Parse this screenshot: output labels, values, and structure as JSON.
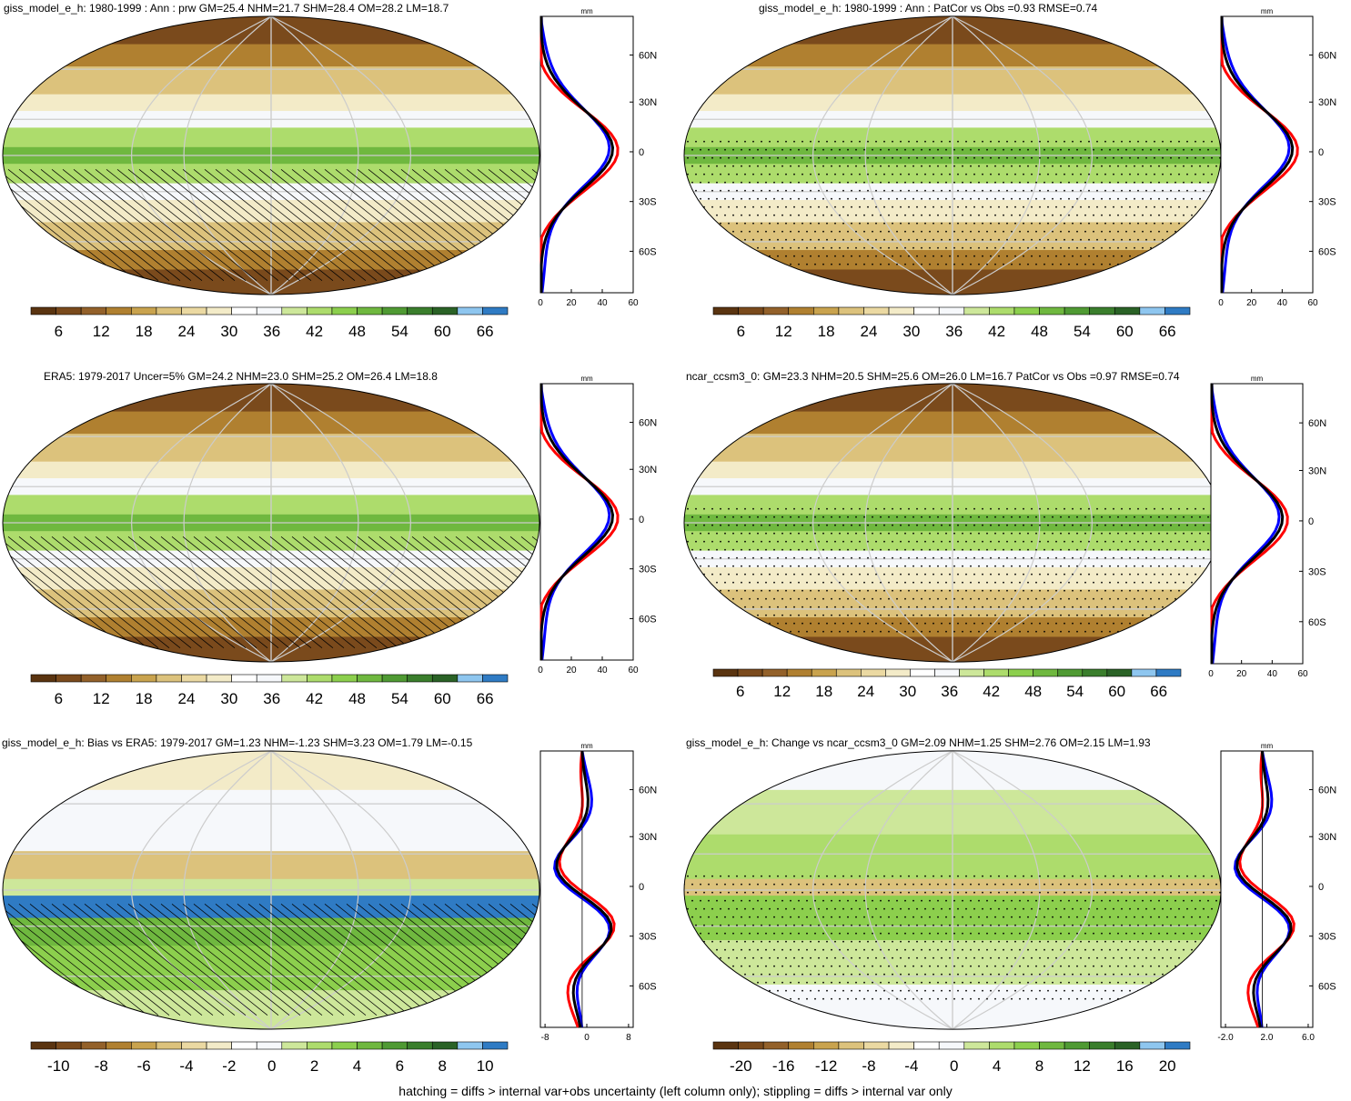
{
  "panels": [
    {
      "title": "giss_model_e_h: 1980-1999 : Ann : prw GM=25.4 NHM=21.7 SHM=28.4 OM=28.2 LM=18.7",
      "type": "absolute",
      "hatch": true,
      "stipple": false,
      "bias": false,
      "cbar_labels": [
        "6",
        "12",
        "18",
        "24",
        "30",
        "36",
        "42",
        "48",
        "54",
        "60",
        "66"
      ],
      "zonal_xticks": [
        "0",
        "20",
        "40",
        "60"
      ],
      "zonal_unit": "mm"
    },
    {
      "title": "giss_model_e_h: 1980-1999 : Ann : PatCor vs Obs =0.93 RMSE=0.74",
      "type": "absolute",
      "hatch": false,
      "stipple": true,
      "bias": false,
      "cbar_labels": [
        "6",
        "12",
        "18",
        "24",
        "30",
        "36",
        "42",
        "48",
        "54",
        "60",
        "66"
      ],
      "zonal_xticks": [
        "0",
        "20",
        "40",
        "60"
      ],
      "zonal_unit": "mm"
    },
    {
      "title": "ERA5: 1979-2017 Uncer=5% GM=24.2 NHM=23.0 SHM=25.2 OM=26.4 LM=18.8",
      "type": "absolute",
      "hatch": true,
      "stipple": false,
      "bias": false,
      "cbar_labels": [
        "6",
        "12",
        "18",
        "24",
        "30",
        "36",
        "42",
        "48",
        "54",
        "60",
        "66"
      ],
      "zonal_xticks": [
        "0",
        "20",
        "40",
        "60"
      ],
      "zonal_unit": "mm"
    },
    {
      "title": "ncar_ccsm3_0: GM=23.3 NHM=20.5 SHM=25.6 OM=26.0 LM=16.7 PatCor vs Obs =0.97 RMSE=0.74",
      "type": "absolute",
      "hatch": false,
      "stipple": true,
      "bias": false,
      "cbar_labels": [
        "6",
        "12",
        "18",
        "24",
        "30",
        "36",
        "42",
        "48",
        "54",
        "60",
        "66"
      ],
      "zonal_xticks": [
        "0",
        "20",
        "40",
        "60"
      ],
      "zonal_unit": "mm"
    },
    {
      "title": "giss_model_e_h: Bias vs ERA5: 1979-2017 GM=1.23 NHM=-1.23 SHM=3.23 OM=1.79 LM=-0.15",
      "type": "bias",
      "hatch": true,
      "stipple": false,
      "bias": true,
      "cbar_labels": [
        "-10",
        "-8",
        "-6",
        "-4",
        "-2",
        "0",
        "2",
        "4",
        "6",
        "8",
        "10"
      ],
      "zonal_xticks": [
        "-8",
        "0",
        "8"
      ],
      "zonal_unit": "mm"
    },
    {
      "title": "giss_model_e_h: Change vs ncar_ccsm3_0 GM=2.09 NHM=1.25 SHM=2.76 OM=2.15 LM=1.93",
      "type": "change",
      "hatch": false,
      "stipple": true,
      "bias": true,
      "cbar_labels": [
        "-20",
        "-16",
        "-12",
        "-8",
        "-4",
        "0",
        "4",
        "8",
        "12",
        "16",
        "20"
      ],
      "zonal_xticks": [
        "-2.0",
        "2.0",
        "6.0"
      ],
      "zonal_unit": "mm"
    }
  ],
  "lat_labels": [
    "60N",
    "30N",
    "0",
    "30S",
    "60S"
  ],
  "colors": {
    "absolute": [
      "#5a3410",
      "#7a4a1c",
      "#93612a",
      "#b08030",
      "#c9a34e",
      "#dcc27c",
      "#ebd9a2",
      "#f3ebc8",
      "#ffffff",
      "#f6f8fb",
      "#cde79a",
      "#addc6c",
      "#8ccf4d",
      "#6fb83f",
      "#4f9a33",
      "#3a7e2c",
      "#2a6226",
      "#8ec6ef",
      "#2f7bc4"
    ],
    "bias": [
      "#5a3410",
      "#7a4a1c",
      "#93612a",
      "#b08030",
      "#c9a34e",
      "#dcc27c",
      "#ebd9a2",
      "#f3ebc8",
      "#ffffff",
      "#f6f8fb",
      "#cde79a",
      "#addc6c",
      "#8ccf4d",
      "#6fb83f",
      "#4f9a33",
      "#3a7e2c",
      "#2a6226",
      "#8ec6ef",
      "#2f7bc4"
    ],
    "line_model": "#ff0000",
    "line_obs": "#0000ff",
    "line_mean": "#000000"
  },
  "footer": "hatching = diffs > internal var+obs uncertainty (left column only); stippling = diffs > internal var only"
}
